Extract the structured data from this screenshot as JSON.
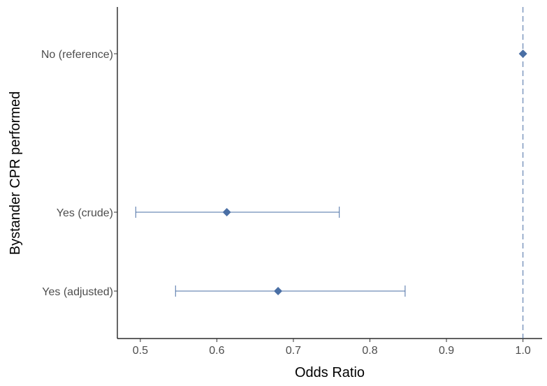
{
  "chart_data": {
    "type": "scatter",
    "subtype": "forest-plot",
    "xlabel": "Odds Ratio",
    "ylabel": "Bystander CPR performed",
    "xlim": [
      0.47,
      1.025
    ],
    "x_ticks": [
      0.5,
      0.6,
      0.7,
      0.8,
      0.9,
      1.0
    ],
    "x_tick_labels": [
      "0.5",
      "0.6",
      "0.7",
      "0.8",
      "0.9",
      "1.0"
    ],
    "reference_line": 1.0,
    "categories": [
      "No (reference)",
      "Yes (crude)",
      "Yes (adjusted)"
    ],
    "points": [
      {
        "label": "No (reference)",
        "or": 1.0,
        "lower": null,
        "upper": null
      },
      {
        "label": "Yes (crude)",
        "or": 0.613,
        "lower": 0.494,
        "upper": 0.76
      },
      {
        "label": "Yes (adjusted)",
        "or": 0.68,
        "lower": 0.546,
        "upper": 0.846
      }
    ],
    "color": "#4a6fa5",
    "grid": false
  }
}
